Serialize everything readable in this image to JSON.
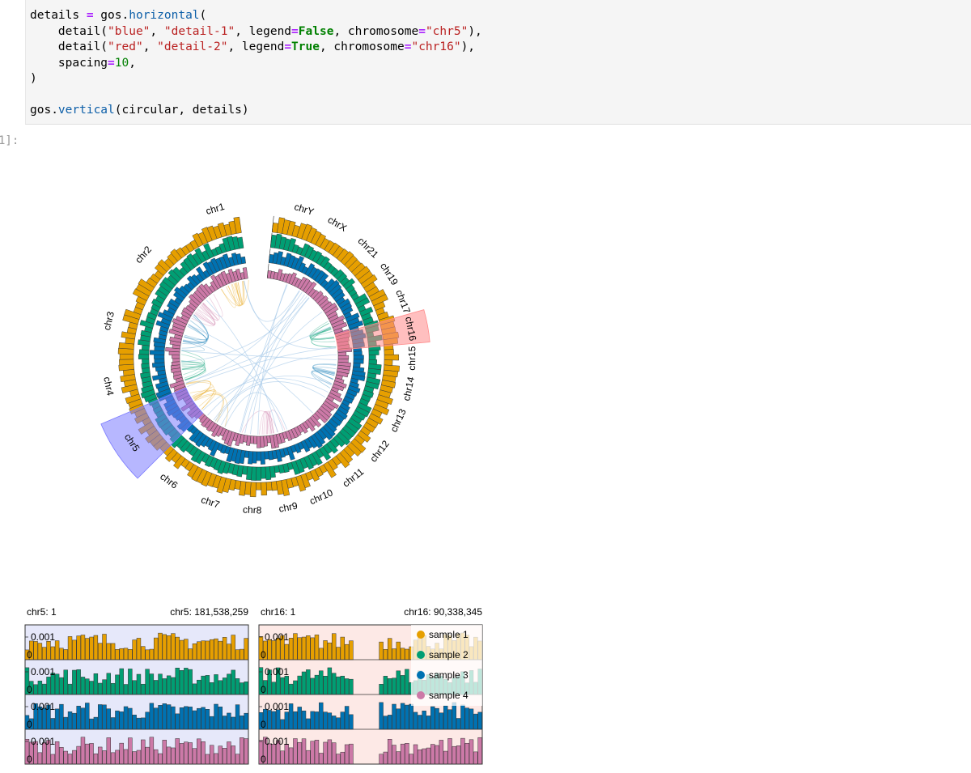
{
  "cell": {
    "prompt": "1]:",
    "code_lines": [
      [
        [
          "c-var",
          "details "
        ],
        [
          "c-op",
          "="
        ],
        [
          "c-var",
          " gos."
        ],
        [
          "c-attr",
          "horizontal"
        ],
        [
          "c-var",
          "("
        ]
      ],
      [
        [
          "c-var",
          "    detail("
        ],
        [
          "c-str",
          "\"blue\""
        ],
        [
          "c-var",
          ", "
        ],
        [
          "c-str",
          "\"detail-1\""
        ],
        [
          "c-var",
          ", legend"
        ],
        [
          "c-op",
          "="
        ],
        [
          "c-kw",
          "False"
        ],
        [
          "c-var",
          ", chromosome"
        ],
        [
          "c-op",
          "="
        ],
        [
          "c-str",
          "\"chr5\""
        ],
        [
          "c-var",
          "),"
        ]
      ],
      [
        [
          "c-var",
          "    detail("
        ],
        [
          "c-str",
          "\"red\""
        ],
        [
          "c-var",
          ", "
        ],
        [
          "c-str",
          "\"detail-2\""
        ],
        [
          "c-var",
          ", legend"
        ],
        [
          "c-op",
          "="
        ],
        [
          "c-kw",
          "True"
        ],
        [
          "c-var",
          ", chromosome"
        ],
        [
          "c-op",
          "="
        ],
        [
          "c-str",
          "\"chr16\""
        ],
        [
          "c-var",
          "),"
        ]
      ],
      [
        [
          "c-var",
          "    spacing"
        ],
        [
          "c-op",
          "="
        ],
        [
          "c-num",
          "10"
        ],
        [
          "c-var",
          ","
        ]
      ],
      [
        [
          "c-var",
          ")"
        ]
      ],
      [
        [
          "c-var",
          ""
        ]
      ],
      [
        [
          "c-var",
          "gos."
        ],
        [
          "c-attr",
          "vertical"
        ],
        [
          "c-var",
          "(circular, details)"
        ]
      ]
    ]
  },
  "circular": {
    "chromosomes": [
      {
        "name": "chr1",
        "label": "chr1"
      },
      {
        "name": "chr2",
        "label": "chr2"
      },
      {
        "name": "chr3",
        "label": "chr3"
      },
      {
        "name": "chr4",
        "label": "chr4"
      },
      {
        "name": "chr5",
        "label": "chr5"
      },
      {
        "name": "chr6",
        "label": "chr6"
      },
      {
        "name": "chr7",
        "label": "chr7"
      },
      {
        "name": "chr8",
        "label": "chr8"
      },
      {
        "name": "chr9",
        "label": "chr9"
      },
      {
        "name": "chr10",
        "label": "chr10"
      },
      {
        "name": "chr11",
        "label": "chr11"
      },
      {
        "name": "chr12",
        "label": "chr12"
      },
      {
        "name": "chr13",
        "label": "chr13"
      },
      {
        "name": "chr14",
        "label": "chr14"
      },
      {
        "name": "chr15",
        "label": "chr15"
      },
      {
        "name": "chr16",
        "label": "chr16"
      },
      {
        "name": "chr17",
        "label": "chr17"
      },
      {
        "name": "chr19",
        "label": "chr19"
      },
      {
        "name": "chr21",
        "label": "chr21"
      },
      {
        "name": "chrX",
        "label": "chrX"
      },
      {
        "name": "chrY",
        "label": "chrY"
      }
    ],
    "highlights": [
      {
        "chromosome": "chr5",
        "color": "#7b7bff"
      },
      {
        "chromosome": "chr16",
        "color": "#ff8a8a"
      }
    ]
  },
  "tracks": [
    {
      "name": "sample 1",
      "color": "#e69f00"
    },
    {
      "name": "sample 2",
      "color": "#009e73"
    },
    {
      "name": "sample 3",
      "color": "#0072b2"
    },
    {
      "name": "sample 4",
      "color": "#cc79a7"
    }
  ],
  "details": [
    {
      "start_label": "chr5: 1",
      "end_label": "chr5: 181,538,259",
      "background": "#e6e8fa",
      "tick_label": "0.001",
      "zero_label": "0"
    },
    {
      "start_label": "chr16: 1",
      "end_label": "chr16: 90,338,345",
      "background": "#fde9e6",
      "tick_label": "0.001",
      "zero_label": "0"
    }
  ],
  "legend": {
    "items": [
      "sample 1",
      "sample 2",
      "sample 3",
      "sample 4"
    ]
  }
}
